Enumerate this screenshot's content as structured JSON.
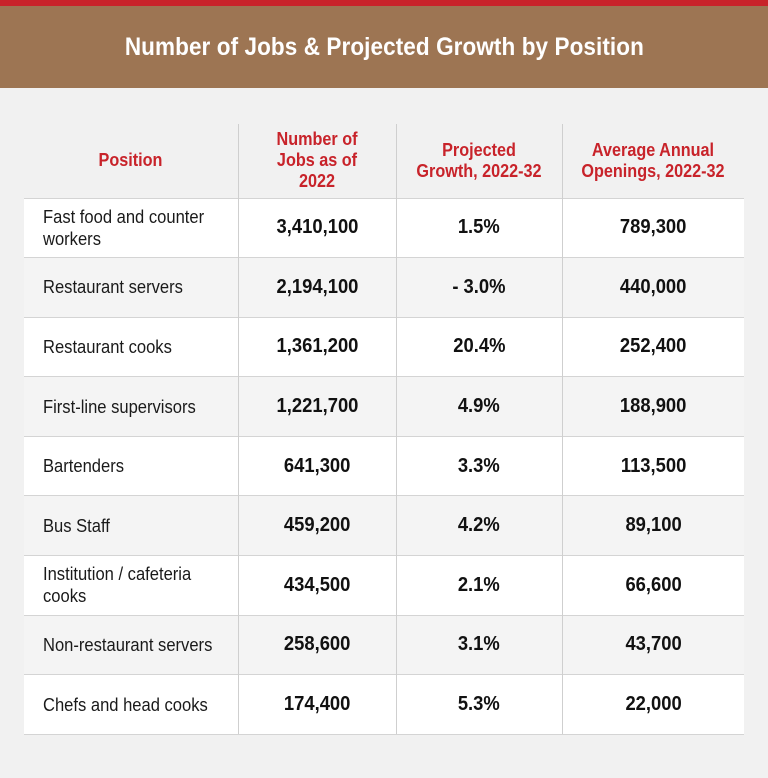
{
  "colors": {
    "top_stripe": "#c8232a",
    "banner": "#9d7553",
    "header_text": "#c8232a",
    "background": "#f1f1f1"
  },
  "chart_data": {
    "type": "table",
    "title": "Number of Jobs & Projected Growth by Position",
    "columns": [
      "Position",
      "Number of Jobs as of 2022",
      "Projected Growth, 2022-32",
      "Average Annual Openings, 2022-32"
    ],
    "rows": [
      {
        "position": "Fast food and counter workers",
        "jobs": "3,410,100",
        "growth": "1.5%",
        "openings": "789,300"
      },
      {
        "position": "Restaurant servers",
        "jobs": "2,194,100",
        "growth": "- 3.0%",
        "openings": "440,000"
      },
      {
        "position": "Restaurant cooks",
        "jobs": "1,361,200",
        "growth": "20.4%",
        "openings": "252,400"
      },
      {
        "position": "First-line supervisors",
        "jobs": "1,221,700",
        "growth": "4.9%",
        "openings": "188,900"
      },
      {
        "position": "Bartenders",
        "jobs": "641,300",
        "growth": "3.3%",
        "openings": "113,500"
      },
      {
        "position": "Bus Staff",
        "jobs": "459,200",
        "growth": "4.2%",
        "openings": "89,100"
      },
      {
        "position": "Institution / cafeteria cooks",
        "jobs": "434,500",
        "growth": "2.1%",
        "openings": "66,600"
      },
      {
        "position": "Non-restaurant servers",
        "jobs": "258,600",
        "growth": "3.1%",
        "openings": "43,700"
      },
      {
        "position": "Chefs and head cooks",
        "jobs": "174,400",
        "growth": "5.3%",
        "openings": "22,000"
      }
    ]
  }
}
